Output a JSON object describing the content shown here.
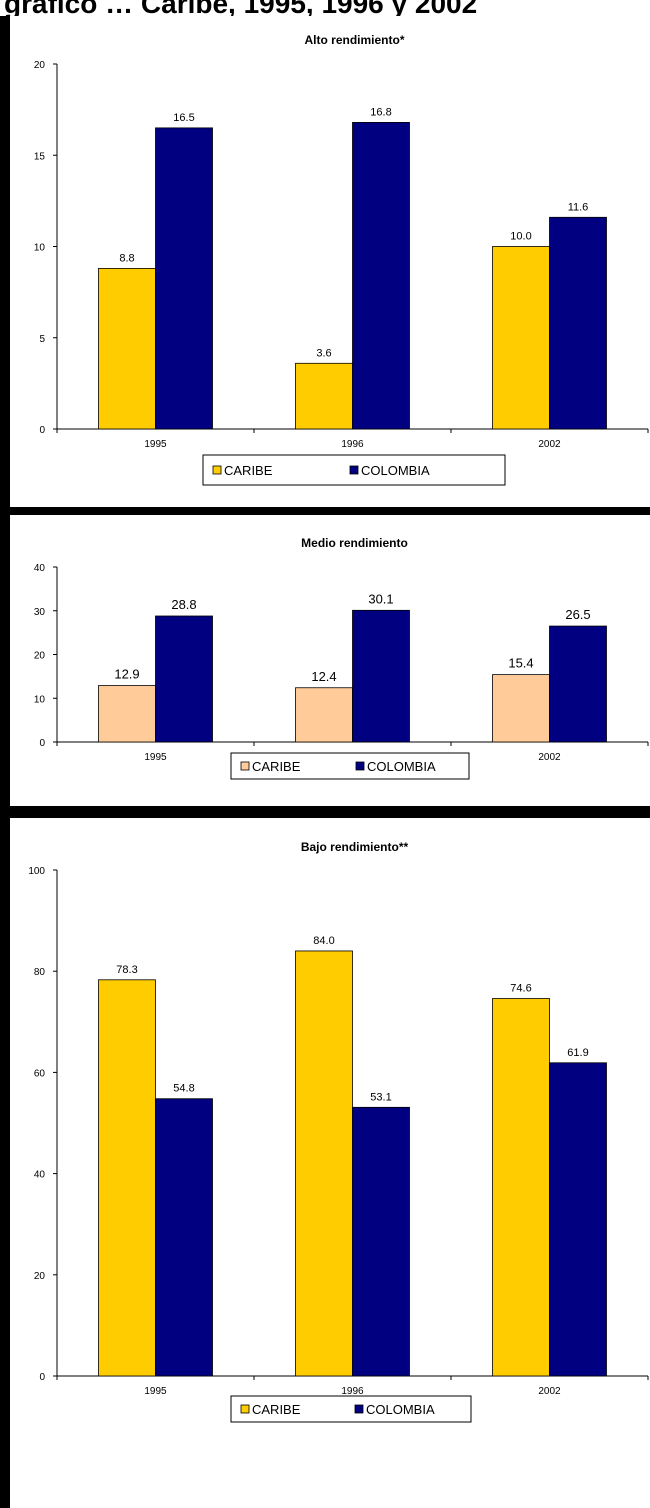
{
  "page_heading": "gráfico … Caribe, 1995, 1996 y 2002",
  "chart_data": [
    {
      "type": "bar",
      "title": "Alto rendimiento*",
      "categories": [
        "1995",
        "1996",
        "2002"
      ],
      "series": [
        {
          "name": "CARIBE",
          "values": [
            8.8,
            3.6,
            10.0
          ],
          "color": "#FFCC00"
        },
        {
          "name": "COLOMBIA",
          "values": [
            16.5,
            16.8,
            11.6
          ],
          "color": "#000080"
        }
      ],
      "value_labels": [
        [
          "8.8",
          "3.6",
          "10.0"
        ],
        [
          "16.5",
          "16.8",
          "11.6"
        ]
      ],
      "ylim": [
        0,
        20
      ],
      "yticks": [
        0,
        5,
        10,
        15,
        20
      ],
      "xlabel": "",
      "ylabel": "",
      "grid": false,
      "legend": "bottom"
    },
    {
      "type": "bar",
      "title": "Medio rendimiento",
      "categories": [
        "1995",
        "1996",
        "2002"
      ],
      "series": [
        {
          "name": "CARIBE",
          "values": [
            12.9,
            12.4,
            15.4
          ],
          "color": "#FFCC99"
        },
        {
          "name": "COLOMBIA",
          "values": [
            28.8,
            30.1,
            26.5
          ],
          "color": "#000080"
        }
      ],
      "value_labels": [
        [
          "12.9",
          "12.4",
          "15.4"
        ],
        [
          "28.8",
          "30.1",
          "26.5"
        ]
      ],
      "ylim": [
        0,
        40
      ],
      "yticks": [
        0,
        10,
        20,
        30,
        40
      ],
      "xlabel": "",
      "ylabel": "",
      "grid": false,
      "legend": "bottom"
    },
    {
      "type": "bar",
      "title": "Bajo rendimiento**",
      "categories": [
        "1995",
        "1996",
        "2002"
      ],
      "series": [
        {
          "name": "CARIBE",
          "values": [
            78.3,
            84.0,
            74.6
          ],
          "color": "#FFCC00"
        },
        {
          "name": "COLOMBIA",
          "values": [
            54.8,
            53.1,
            61.9
          ],
          "color": "#000080"
        }
      ],
      "value_labels": [
        [
          "78.3",
          "84.0",
          "74.6"
        ],
        [
          "54.8",
          "53.1",
          "61.9"
        ]
      ],
      "ylim": [
        0,
        100
      ],
      "yticks": [
        0,
        20,
        40,
        60,
        80,
        100
      ],
      "xlabel": "",
      "ylabel": "",
      "grid": false,
      "legend": "bottom"
    }
  ]
}
